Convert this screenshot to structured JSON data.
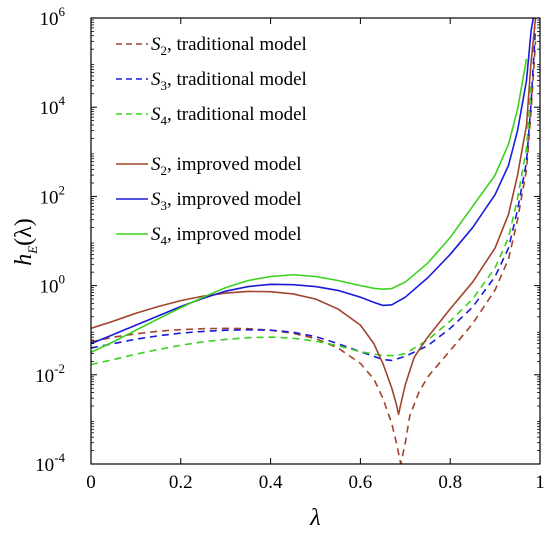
{
  "chart_data": {
    "type": "line",
    "xlabel": "λ",
    "ylabel": {
      "main": "h",
      "sub": "E",
      "tail": "(λ)"
    },
    "xlim": [
      0,
      1
    ],
    "ylim": [
      0.0001,
      1000000
    ],
    "yscale": "log",
    "grid": false,
    "legend_position": "top-left",
    "x_ticks": [
      "0",
      "0.2",
      "0.4",
      "0.6",
      "0.8",
      "1"
    ],
    "y_ticks": [
      {
        "base": "10",
        "exp": "-4",
        "value": 0.0001
      },
      {
        "base": "10",
        "exp": "-2",
        "value": 0.01
      },
      {
        "base": "10",
        "exp": "0",
        "value": 1
      },
      {
        "base": "10",
        "exp": "2",
        "value": 100
      },
      {
        "base": "10",
        "exp": "4",
        "value": 10000
      },
      {
        "base": "10",
        "exp": "6",
        "value": 1000000
      }
    ],
    "series": [
      {
        "name": "S2, traditional model",
        "label_main": "S",
        "label_sub": "2",
        "label_tail": ", traditional model",
        "color": "#a0442c",
        "dash": true,
        "x": [
          0,
          0.05,
          0.1,
          0.15,
          0.2,
          0.25,
          0.3,
          0.35,
          0.4,
          0.45,
          0.5,
          0.55,
          0.6,
          0.63,
          0.65,
          0.67,
          0.68,
          0.69,
          0.7,
          0.71,
          0.73,
          0.75,
          0.8,
          0.85,
          0.9,
          0.93,
          0.95,
          0.97,
          0.98,
          0.99
        ],
        "y": [
          0.055,
          0.07,
          0.083,
          0.095,
          0.103,
          0.108,
          0.11,
          0.108,
          0.1,
          0.085,
          0.065,
          0.04,
          0.018,
          0.008,
          0.003,
          0.0008,
          0.0003,
          0.0001,
          0.0003,
          0.0012,
          0.004,
          0.009,
          0.035,
          0.14,
          0.8,
          4,
          30,
          400,
          8000,
          300000
        ]
      },
      {
        "name": "S3, traditional model",
        "label_main": "S",
        "label_sub": "3",
        "label_tail": ", traditional model",
        "color": "#1a1adc",
        "dash": true,
        "x": [
          0,
          0.05,
          0.1,
          0.15,
          0.2,
          0.25,
          0.3,
          0.35,
          0.4,
          0.45,
          0.5,
          0.55,
          0.6,
          0.65,
          0.67,
          0.7,
          0.75,
          0.8,
          0.85,
          0.9,
          0.93,
          0.95,
          0.97,
          0.98,
          0.99
        ],
        "y": [
          0.04,
          0.05,
          0.063,
          0.075,
          0.086,
          0.094,
          0.1,
          0.102,
          0.1,
          0.09,
          0.072,
          0.05,
          0.033,
          0.022,
          0.021,
          0.026,
          0.045,
          0.11,
          0.33,
          1.6,
          7,
          50,
          600,
          12000,
          600000
        ]
      },
      {
        "name": "S4, traditional model",
        "label_main": "S",
        "label_sub": "4",
        "label_tail": ", traditional model",
        "color": "#3ad21c",
        "dash": true,
        "x": [
          0,
          0.05,
          0.1,
          0.15,
          0.2,
          0.25,
          0.3,
          0.35,
          0.4,
          0.45,
          0.5,
          0.55,
          0.6,
          0.65,
          0.68,
          0.7,
          0.75,
          0.8,
          0.85,
          0.9,
          0.93,
          0.95,
          0.97,
          0.98
        ],
        "y": [
          0.017,
          0.022,
          0.029,
          0.037,
          0.046,
          0.055,
          0.062,
          0.068,
          0.07,
          0.066,
          0.057,
          0.045,
          0.033,
          0.027,
          0.027,
          0.03,
          0.06,
          0.16,
          0.5,
          2.5,
          12,
          90,
          1200,
          30000
        ]
      },
      {
        "name": "S2, improved model",
        "label_main": "S",
        "label_sub": "2",
        "label_tail": ", improved model",
        "color": "#a0442c",
        "dash": false,
        "x": [
          0,
          0.05,
          0.1,
          0.15,
          0.2,
          0.25,
          0.3,
          0.35,
          0.4,
          0.45,
          0.5,
          0.55,
          0.6,
          0.63,
          0.65,
          0.67,
          0.68,
          0.685,
          0.69,
          0.7,
          0.72,
          0.75,
          0.8,
          0.85,
          0.9,
          0.93,
          0.95,
          0.97,
          0.98,
          0.99
        ],
        "y": [
          0.11,
          0.16,
          0.24,
          0.34,
          0.46,
          0.58,
          0.68,
          0.74,
          0.73,
          0.65,
          0.5,
          0.3,
          0.13,
          0.05,
          0.018,
          0.005,
          0.0022,
          0.0013,
          0.0022,
          0.006,
          0.025,
          0.07,
          0.3,
          1.2,
          7,
          40,
          300,
          4000,
          100000,
          1000000
        ]
      },
      {
        "name": "S3, improved model",
        "label_main": "S",
        "label_sub": "3",
        "label_tail": ", improved model",
        "color": "#1a1adc",
        "dash": false,
        "x": [
          0,
          0.05,
          0.1,
          0.15,
          0.2,
          0.25,
          0.3,
          0.35,
          0.4,
          0.45,
          0.5,
          0.55,
          0.6,
          0.63,
          0.65,
          0.67,
          0.7,
          0.75,
          0.8,
          0.85,
          0.9,
          0.93,
          0.95,
          0.97,
          0.98,
          0.99
        ],
        "y": [
          0.05,
          0.08,
          0.13,
          0.21,
          0.34,
          0.52,
          0.75,
          0.95,
          1.07,
          1.05,
          0.95,
          0.78,
          0.55,
          0.42,
          0.36,
          0.37,
          0.55,
          1.5,
          5,
          20,
          110,
          500,
          3000,
          40000,
          500000,
          2000000
        ]
      },
      {
        "name": "S4, improved model",
        "label_main": "S",
        "label_sub": "4",
        "label_tail": ", improved model",
        "color": "#3ad21c",
        "dash": false,
        "x": [
          0,
          0.05,
          0.1,
          0.15,
          0.2,
          0.25,
          0.3,
          0.35,
          0.4,
          0.45,
          0.5,
          0.55,
          0.6,
          0.63,
          0.65,
          0.67,
          0.7,
          0.75,
          0.8,
          0.85,
          0.9,
          0.93,
          0.95,
          0.97
        ],
        "y": [
          0.032,
          0.055,
          0.1,
          0.18,
          0.32,
          0.55,
          0.9,
          1.3,
          1.6,
          1.75,
          1.6,
          1.3,
          1.0,
          0.87,
          0.83,
          0.86,
          1.2,
          3.2,
          12,
          60,
          300,
          1500,
          9000,
          120000
        ]
      }
    ]
  }
}
